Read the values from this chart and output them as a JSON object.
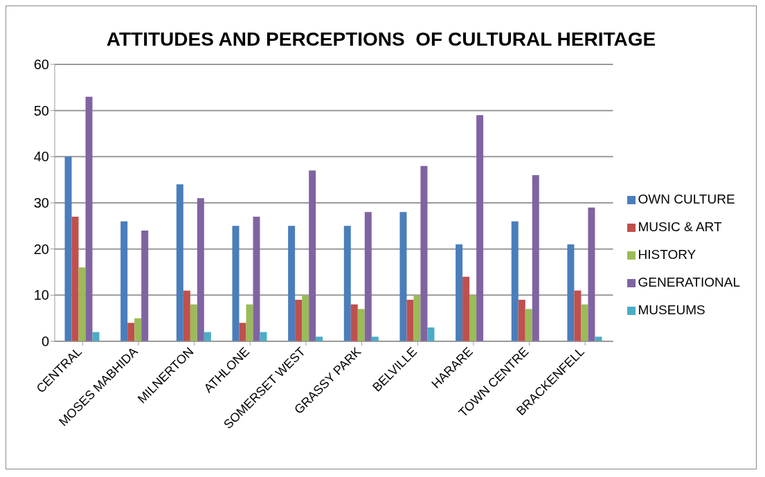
{
  "chart_data": {
    "type": "bar",
    "title": "ATTITUDES AND PERCEPTIONS  OF CULTURAL HERITAGE",
    "categories": [
      "CENTRAL",
      "MOSES MABHIDA",
      "MILNERTON",
      "ATHLONE",
      "SOMERSET WEST",
      "GRASSY PARK",
      "BELVILLE",
      "HARARE",
      "TOWN CENTRE",
      "BRACKENFELL"
    ],
    "series": [
      {
        "name": "OWN CULTURE",
        "color": "#4a7ebb",
        "values": [
          40,
          26,
          34,
          25,
          25,
          25,
          28,
          21,
          26,
          21
        ]
      },
      {
        "name": "MUSIC & ART",
        "color": "#c0504d",
        "values": [
          27,
          4,
          11,
          4,
          9,
          8,
          9,
          14,
          9,
          11
        ]
      },
      {
        "name": "HISTORY",
        "color": "#9bbb59",
        "values": [
          16,
          5,
          8,
          8,
          10,
          7,
          10,
          10,
          7,
          8
        ]
      },
      {
        "name": "GENERATIONAL",
        "color": "#8064a2",
        "values": [
          53,
          24,
          31,
          27,
          37,
          28,
          38,
          49,
          36,
          29
        ]
      },
      {
        "name": "MUSEUMS",
        "color": "#4bacc6",
        "values": [
          2,
          0,
          2,
          2,
          1,
          1,
          3,
          0,
          0,
          1
        ]
      }
    ],
    "ylim": [
      0,
      60
    ],
    "yticks": [
      0,
      10,
      20,
      30,
      40,
      50,
      60
    ],
    "grid": "y",
    "legend": "right"
  }
}
